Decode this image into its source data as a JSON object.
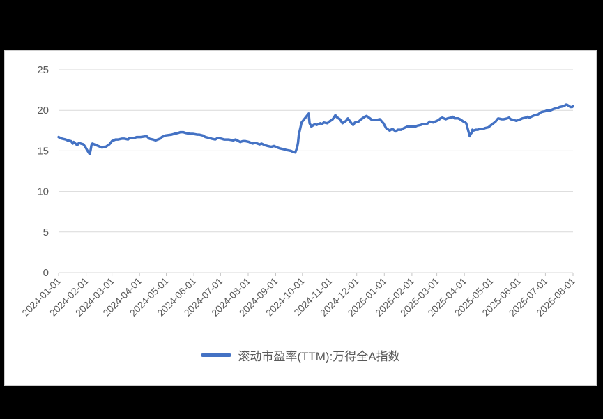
{
  "chart_data": {
    "type": "line",
    "title": "",
    "xlabel": "",
    "ylabel": "",
    "ylim": [
      0,
      25
    ],
    "y_ticks": [
      0,
      5,
      10,
      15,
      20,
      25
    ],
    "x_range": [
      "2024-01-01",
      "2025-08-01"
    ],
    "x_tick_labels": [
      "2024-01-01",
      "2024-02-01",
      "2024-03-01",
      "2024-04-01",
      "2024-05-01",
      "2024-06-01",
      "2024-07-01",
      "2024-08-01",
      "2024-09-01",
      "2024-10-01",
      "2024-11-01",
      "2024-12-01",
      "2025-01-01",
      "2025-02-01",
      "2025-03-01",
      "2025-04-01",
      "2025-05-01",
      "2025-06-01",
      "2025-07-01",
      "2025-08-01"
    ],
    "grid": "horizontal",
    "legend_position": "bottom-center",
    "colors": {
      "series": "#4472C4",
      "gridline": "#D9D9D9",
      "axis": "#C6C6C6",
      "tick_label": "#595959",
      "panel_background": "#FFFFFF",
      "page_background": "#000000"
    },
    "series": [
      {
        "name": "滚动市盈率(TTM):万得全A指数",
        "color": "#4472C4",
        "points": [
          [
            "2024-01-01",
            16.7
          ],
          [
            "2024-01-03",
            16.6
          ],
          [
            "2024-01-05",
            16.5
          ],
          [
            "2024-01-09",
            16.4
          ],
          [
            "2024-01-11",
            16.3
          ],
          [
            "2024-01-15",
            16.2
          ],
          [
            "2024-01-17",
            15.9
          ],
          [
            "2024-01-18",
            16.1
          ],
          [
            "2024-01-22",
            15.7
          ],
          [
            "2024-01-24",
            16.0
          ],
          [
            "2024-01-26",
            15.9
          ],
          [
            "2024-01-29",
            15.8
          ],
          [
            "2024-01-31",
            15.5
          ],
          [
            "2024-02-02",
            15.1
          ],
          [
            "2024-02-05",
            14.6
          ],
          [
            "2024-02-06",
            15.1
          ],
          [
            "2024-02-07",
            15.7
          ],
          [
            "2024-02-08",
            15.9
          ],
          [
            "2024-02-19",
            15.4
          ],
          [
            "2024-02-21",
            15.5
          ],
          [
            "2024-02-23",
            15.5
          ],
          [
            "2024-02-27",
            15.8
          ],
          [
            "2024-03-01",
            16.2
          ],
          [
            "2024-03-05",
            16.4
          ],
          [
            "2024-03-08",
            16.4
          ],
          [
            "2024-03-12",
            16.5
          ],
          [
            "2024-03-15",
            16.5
          ],
          [
            "2024-03-19",
            16.4
          ],
          [
            "2024-03-21",
            16.6
          ],
          [
            "2024-03-26",
            16.6
          ],
          [
            "2024-03-29",
            16.7
          ],
          [
            "2024-04-02",
            16.7
          ],
          [
            "2024-04-09",
            16.8
          ],
          [
            "2024-04-12",
            16.5
          ],
          [
            "2024-04-16",
            16.4
          ],
          [
            "2024-04-19",
            16.3
          ],
          [
            "2024-04-24",
            16.5
          ],
          [
            "2024-04-26",
            16.7
          ],
          [
            "2024-04-30",
            16.9
          ],
          [
            "2024-05-07",
            17.0
          ],
          [
            "2024-05-10",
            17.1
          ],
          [
            "2024-05-14",
            17.2
          ],
          [
            "2024-05-17",
            17.3
          ],
          [
            "2024-05-20",
            17.3
          ],
          [
            "2024-05-23",
            17.2
          ],
          [
            "2024-05-28",
            17.1
          ],
          [
            "2024-05-31",
            17.1
          ],
          [
            "2024-06-05",
            17.0
          ],
          [
            "2024-06-07",
            17.0
          ],
          [
            "2024-06-11",
            16.9
          ],
          [
            "2024-06-14",
            16.7
          ],
          [
            "2024-06-18",
            16.6
          ],
          [
            "2024-06-21",
            16.5
          ],
          [
            "2024-06-25",
            16.4
          ],
          [
            "2024-06-28",
            16.6
          ],
          [
            "2024-07-02",
            16.5
          ],
          [
            "2024-07-05",
            16.4
          ],
          [
            "2024-07-10",
            16.4
          ],
          [
            "2024-07-15",
            16.3
          ],
          [
            "2024-07-18",
            16.4
          ],
          [
            "2024-07-23",
            16.1
          ],
          [
            "2024-07-26",
            16.2
          ],
          [
            "2024-07-29",
            16.2
          ],
          [
            "2024-08-02",
            16.1
          ],
          [
            "2024-08-06",
            15.9
          ],
          [
            "2024-08-09",
            16.0
          ],
          [
            "2024-08-14",
            15.8
          ],
          [
            "2024-08-16",
            15.9
          ],
          [
            "2024-08-20",
            15.7
          ],
          [
            "2024-08-23",
            15.6
          ],
          [
            "2024-08-27",
            15.5
          ],
          [
            "2024-08-30",
            15.6
          ],
          [
            "2024-09-03",
            15.4
          ],
          [
            "2024-09-06",
            15.3
          ],
          [
            "2024-09-10",
            15.2
          ],
          [
            "2024-09-13",
            15.1
          ],
          [
            "2024-09-18",
            15.0
          ],
          [
            "2024-09-20",
            14.9
          ],
          [
            "2024-09-23",
            14.8
          ],
          [
            "2024-09-25",
            15.4
          ],
          [
            "2024-09-26",
            16.0
          ],
          [
            "2024-09-27",
            17.0
          ],
          [
            "2024-09-30",
            18.5
          ],
          [
            "2024-10-08",
            19.6
          ],
          [
            "2024-10-09",
            18.4
          ],
          [
            "2024-10-11",
            18.0
          ],
          [
            "2024-10-15",
            18.3
          ],
          [
            "2024-10-17",
            18.2
          ],
          [
            "2024-10-21",
            18.4
          ],
          [
            "2024-10-23",
            18.3
          ],
          [
            "2024-10-25",
            18.5
          ],
          [
            "2024-10-29",
            18.4
          ],
          [
            "2024-10-31",
            18.6
          ],
          [
            "2024-11-04",
            18.9
          ],
          [
            "2024-11-07",
            19.4
          ],
          [
            "2024-11-08",
            19.2
          ],
          [
            "2024-11-12",
            18.9
          ],
          [
            "2024-11-15",
            18.4
          ],
          [
            "2024-11-19",
            18.7
          ],
          [
            "2024-11-21",
            19.0
          ],
          [
            "2024-11-25",
            18.4
          ],
          [
            "2024-11-27",
            18.2
          ],
          [
            "2024-11-29",
            18.5
          ],
          [
            "2024-12-03",
            18.6
          ],
          [
            "2024-12-06",
            18.9
          ],
          [
            "2024-12-10",
            19.2
          ],
          [
            "2024-12-12",
            19.3
          ],
          [
            "2024-12-16",
            19.0
          ],
          [
            "2024-12-18",
            18.8
          ],
          [
            "2024-12-23",
            18.8
          ],
          [
            "2024-12-27",
            18.9
          ],
          [
            "2024-12-31",
            18.4
          ],
          [
            "2025-01-03",
            17.8
          ],
          [
            "2025-01-07",
            17.5
          ],
          [
            "2025-01-10",
            17.7
          ],
          [
            "2025-01-14",
            17.4
          ],
          [
            "2025-01-16",
            17.6
          ],
          [
            "2025-01-20",
            17.6
          ],
          [
            "2025-01-23",
            17.8
          ],
          [
            "2025-01-27",
            18.0
          ],
          [
            "2025-02-05",
            18.0
          ],
          [
            "2025-02-07",
            18.1
          ],
          [
            "2025-02-11",
            18.2
          ],
          [
            "2025-02-13",
            18.3
          ],
          [
            "2025-02-17",
            18.3
          ],
          [
            "2025-02-19",
            18.4
          ],
          [
            "2025-02-21",
            18.6
          ],
          [
            "2025-02-25",
            18.5
          ],
          [
            "2025-02-27",
            18.6
          ],
          [
            "2025-03-03",
            18.8
          ],
          [
            "2025-03-05",
            19.0
          ],
          [
            "2025-03-07",
            19.1
          ],
          [
            "2025-03-11",
            18.9
          ],
          [
            "2025-03-13",
            19.0
          ],
          [
            "2025-03-17",
            19.1
          ],
          [
            "2025-03-19",
            19.2
          ],
          [
            "2025-03-21",
            19.0
          ],
          [
            "2025-03-25",
            19.0
          ],
          [
            "2025-03-27",
            18.9
          ],
          [
            "2025-03-31",
            18.6
          ],
          [
            "2025-04-02",
            18.5
          ],
          [
            "2025-04-03",
            18.4
          ],
          [
            "2025-04-07",
            16.8
          ],
          [
            "2025-04-08",
            17.1
          ],
          [
            "2025-04-09",
            17.2
          ],
          [
            "2025-04-10",
            17.6
          ],
          [
            "2025-04-11",
            17.5
          ],
          [
            "2025-04-14",
            17.6
          ],
          [
            "2025-04-16",
            17.6
          ],
          [
            "2025-04-18",
            17.7
          ],
          [
            "2025-04-22",
            17.7
          ],
          [
            "2025-04-24",
            17.8
          ],
          [
            "2025-04-28",
            17.9
          ],
          [
            "2025-04-30",
            18.1
          ],
          [
            "2025-05-06",
            18.6
          ],
          [
            "2025-05-08",
            18.9
          ],
          [
            "2025-05-09",
            19.0
          ],
          [
            "2025-05-13",
            18.9
          ],
          [
            "2025-05-15",
            18.9
          ],
          [
            "2025-05-19",
            19.0
          ],
          [
            "2025-05-21",
            19.1
          ],
          [
            "2025-05-23",
            18.9
          ],
          [
            "2025-05-27",
            18.8
          ],
          [
            "2025-05-29",
            18.7
          ],
          [
            "2025-06-03",
            18.9
          ],
          [
            "2025-06-05",
            19.0
          ],
          [
            "2025-06-09",
            19.1
          ],
          [
            "2025-06-11",
            19.2
          ],
          [
            "2025-06-13",
            19.1
          ],
          [
            "2025-06-17",
            19.3
          ],
          [
            "2025-06-19",
            19.4
          ],
          [
            "2025-06-23",
            19.5
          ],
          [
            "2025-06-25",
            19.7
          ],
          [
            "2025-06-27",
            19.8
          ],
          [
            "2025-07-01",
            19.9
          ],
          [
            "2025-07-03",
            20.0
          ],
          [
            "2025-07-07",
            20.0
          ],
          [
            "2025-07-09",
            20.1
          ],
          [
            "2025-07-11",
            20.2
          ],
          [
            "2025-07-15",
            20.3
          ],
          [
            "2025-07-17",
            20.4
          ],
          [
            "2025-07-21",
            20.5
          ],
          [
            "2025-07-23",
            20.6
          ],
          [
            "2025-07-24",
            20.7
          ],
          [
            "2025-07-25",
            20.7
          ],
          [
            "2025-07-28",
            20.5
          ],
          [
            "2025-07-29",
            20.4
          ],
          [
            "2025-07-31",
            20.4
          ],
          [
            "2025-08-01",
            20.5
          ]
        ]
      }
    ]
  }
}
